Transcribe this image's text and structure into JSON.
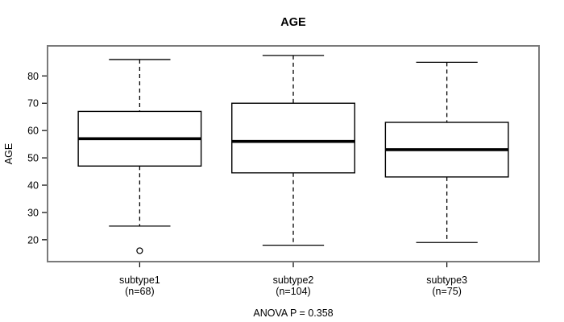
{
  "figure": {
    "title": "AGE",
    "y_axis_label": "AGE",
    "footnote": "ANOVA P = 0.358"
  },
  "colors": {
    "background": "#ffffff",
    "frame": "#7a7a7a",
    "plot_lines": "#000000",
    "text": "#000000"
  },
  "chart_data": {
    "type": "boxplot",
    "title": "AGE",
    "xlabel": "",
    "ylabel": "AGE",
    "ylim": [
      12,
      91
    ],
    "yticks": [
      20,
      30,
      40,
      50,
      60,
      70,
      80
    ],
    "grid": false,
    "legend": false,
    "categories": [
      "subtype1",
      "subtype2",
      "subtype3"
    ],
    "category_counts": [
      "(n=68)",
      "(n=104)",
      "(n=75)"
    ],
    "series": [
      {
        "name": "subtype1",
        "n": 68,
        "whisker_low": 25,
        "q1": 47,
        "median": 57,
        "q3": 67,
        "whisker_high": 86,
        "outliers": [
          16
        ]
      },
      {
        "name": "subtype2",
        "n": 104,
        "whisker_low": 18,
        "q1": 44.5,
        "median": 56,
        "q3": 70,
        "whisker_high": 87.5,
        "outliers": []
      },
      {
        "name": "subtype3",
        "n": 75,
        "whisker_low": 19,
        "q1": 43,
        "median": 53,
        "q3": 63,
        "whisker_high": 85,
        "outliers": []
      }
    ],
    "annotation": "ANOVA P = 0.358"
  }
}
